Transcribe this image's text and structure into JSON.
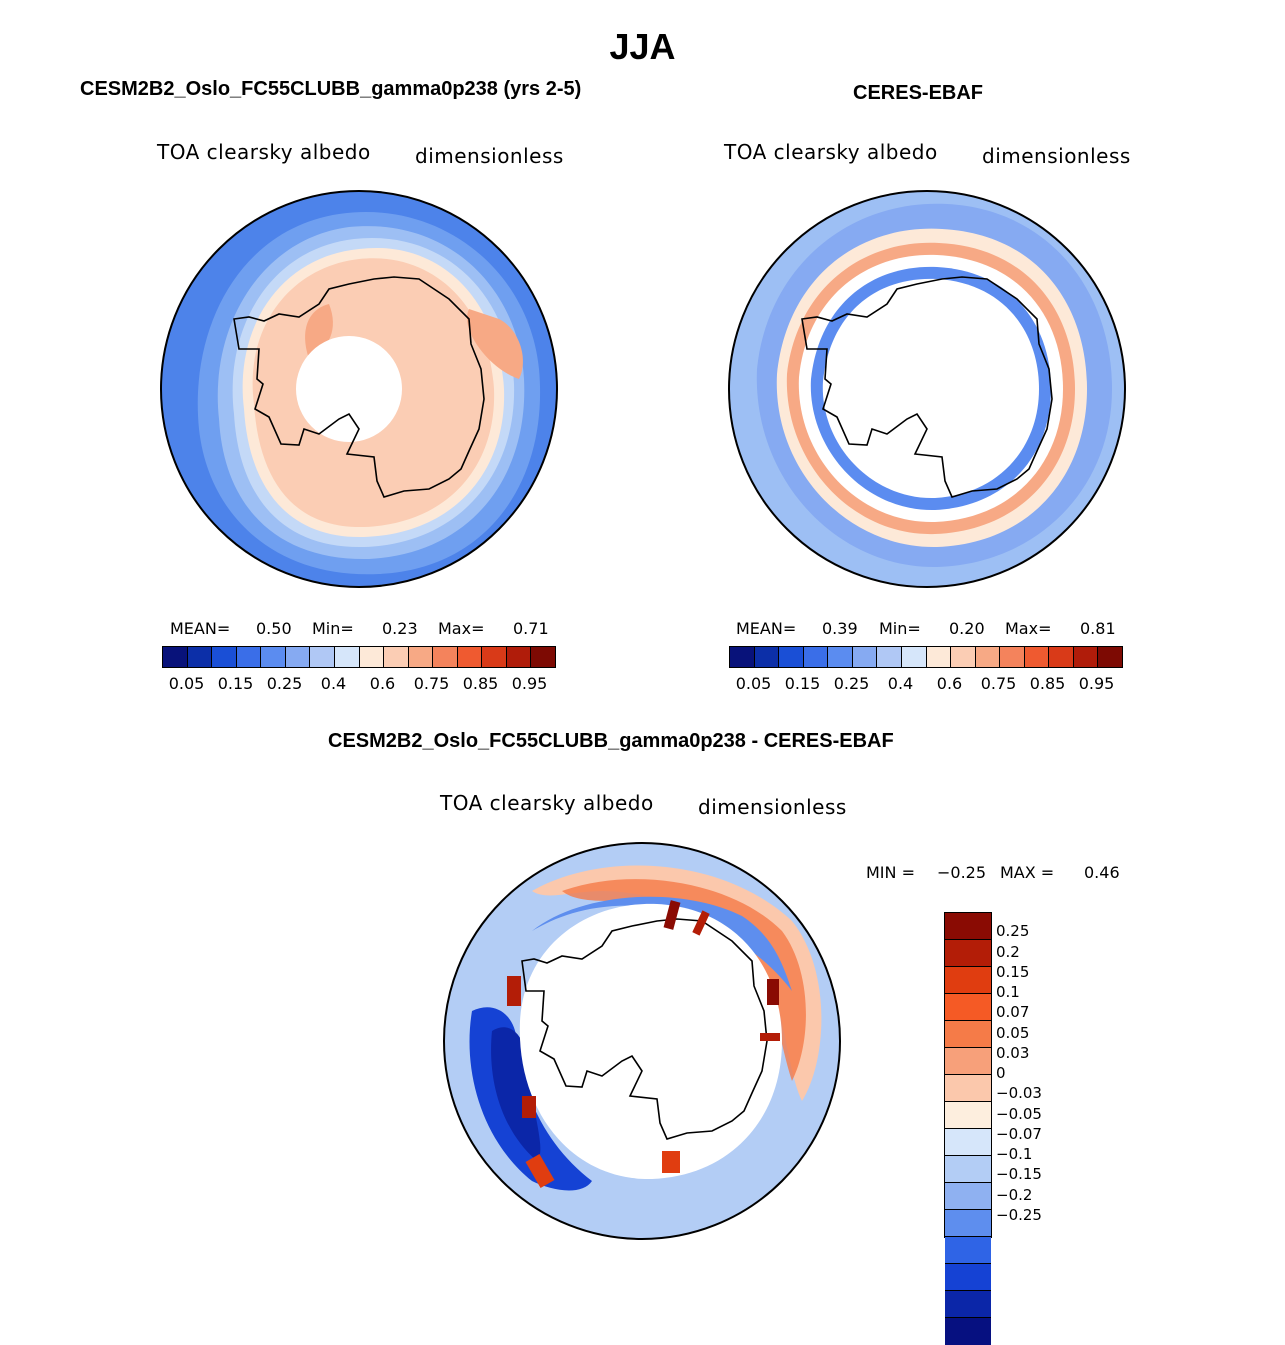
{
  "title": "JJA",
  "panels": [
    {
      "title": "CESM2B2_Oslo_FC55CLUBB_gamma0p238 (yrs 2-5)",
      "variable": "TOA clearsky albedo",
      "units": "dimensionless",
      "stats": {
        "mean_label": "MEAN=",
        "mean": "0.50",
        "min_label": "Min=",
        "min": "0.23",
        "max_label": "Max=",
        "max": "0.71"
      }
    },
    {
      "title": "CERES-EBAF",
      "variable": "TOA clearsky albedo",
      "units": "dimensionless",
      "stats": {
        "mean_label": "MEAN=",
        "mean": "0.39",
        "min_label": "Min=",
        "min": "0.20",
        "max_label": "Max=",
        "max": "0.81"
      }
    },
    {
      "title": "CESM2B2_Oslo_FC55CLUBB_gamma0p238 - CERES-EBAF",
      "variable": "TOA clearsky albedo",
      "units": "dimensionless",
      "stats": {
        "min_label": "MIN =",
        "min": "−0.25",
        "max_label": "MAX =",
        "max": "0.46"
      }
    }
  ],
  "colorbar_main": {
    "colors": [
      "#08127a",
      "#0c2fa8",
      "#1a4fd6",
      "#3a6ee8",
      "#5b8cf0",
      "#86aaf2",
      "#b0c8f5",
      "#d6e6fa",
      "#fde9d8",
      "#fbcdb4",
      "#f7a985",
      "#f4835c",
      "#ef5a30",
      "#d93a18",
      "#b01c0a",
      "#7d0a03"
    ],
    "ticks": [
      "0.05",
      "0.15",
      "0.25",
      "0.4",
      "0.6",
      "0.75",
      "0.85",
      "0.95"
    ]
  },
  "colorbar_diff": {
    "colors": [
      "#8a0b03",
      "#b31d07",
      "#e03d10",
      "#f55a25",
      "#f57b48",
      "#f7a07a",
      "#fbc8ac",
      "#fdeede",
      "#d6e6fa",
      "#b3cdf5",
      "#8fb1f1",
      "#5e8eee",
      "#2f64e6",
      "#1542d4",
      "#0b26a8",
      "#061080"
    ],
    "labels": [
      "0.25",
      "0.2",
      "0.15",
      "0.1",
      "0.07",
      "0.05",
      "0.03",
      "0",
      "−0.03",
      "−0.05",
      "−0.07",
      "−0.1",
      "−0.15",
      "−0.2",
      "−0.25"
    ]
  },
  "map_fill_colors": {
    "ocean_outer": "#4d83ea",
    "band2": "#6f9ff0",
    "band3": "#9dbff4",
    "band4": "#c4d9f7",
    "band5": "#fde9d8",
    "ice": "#fbcdb4",
    "ice_high": "#f7a985",
    "pole_hole": "#ffffff",
    "red": "#f4835c",
    "dark_red": "#b01c0a",
    "blue_dark": "#2f64e6"
  }
}
